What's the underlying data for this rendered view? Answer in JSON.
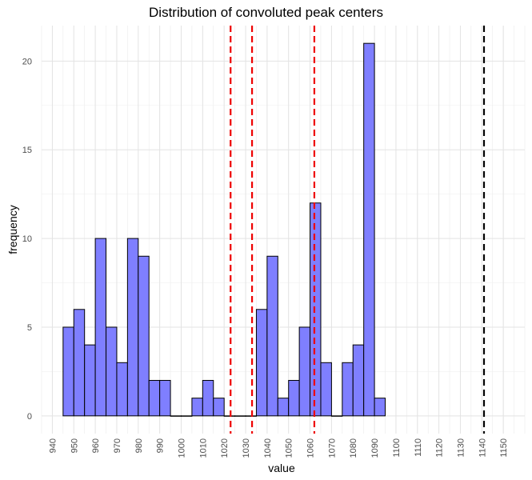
{
  "chart_data": {
    "type": "bar",
    "title": "Distribution of convoluted peak centers",
    "xlabel": "value",
    "ylabel": "frequency",
    "xlim": [
      935,
      1160
    ],
    "ylim": [
      -1,
      22
    ],
    "x_ticks": [
      940,
      950,
      960,
      970,
      980,
      990,
      1000,
      1010,
      1020,
      1030,
      1040,
      1050,
      1060,
      1070,
      1080,
      1090,
      1100,
      1110,
      1120,
      1130,
      1140,
      1150
    ],
    "y_ticks": [
      0,
      5,
      10,
      15,
      20
    ],
    "bin_width": 5,
    "bins": [
      {
        "x0": 945,
        "x1": 950,
        "count": 5
      },
      {
        "x0": 950,
        "x1": 955,
        "count": 6
      },
      {
        "x0": 955,
        "x1": 960,
        "count": 4
      },
      {
        "x0": 960,
        "x1": 965,
        "count": 10
      },
      {
        "x0": 965,
        "x1": 970,
        "count": 5
      },
      {
        "x0": 970,
        "x1": 975,
        "count": 3
      },
      {
        "x0": 975,
        "x1": 980,
        "count": 10
      },
      {
        "x0": 980,
        "x1": 985,
        "count": 9
      },
      {
        "x0": 985,
        "x1": 990,
        "count": 2
      },
      {
        "x0": 990,
        "x1": 995,
        "count": 2
      },
      {
        "x0": 995,
        "x1": 1000,
        "count": 0
      },
      {
        "x0": 1000,
        "x1": 1005,
        "count": 0
      },
      {
        "x0": 1005,
        "x1": 1010,
        "count": 1
      },
      {
        "x0": 1010,
        "x1": 1015,
        "count": 2
      },
      {
        "x0": 1015,
        "x1": 1020,
        "count": 1
      },
      {
        "x0": 1020,
        "x1": 1025,
        "count": 0
      },
      {
        "x0": 1025,
        "x1": 1030,
        "count": 0
      },
      {
        "x0": 1030,
        "x1": 1035,
        "count": 0
      },
      {
        "x0": 1035,
        "x1": 1040,
        "count": 6
      },
      {
        "x0": 1040,
        "x1": 1045,
        "count": 9
      },
      {
        "x0": 1045,
        "x1": 1050,
        "count": 1
      },
      {
        "x0": 1050,
        "x1": 1055,
        "count": 2
      },
      {
        "x0": 1055,
        "x1": 1060,
        "count": 5
      },
      {
        "x0": 1060,
        "x1": 1065,
        "count": 12
      },
      {
        "x0": 1065,
        "x1": 1070,
        "count": 3
      },
      {
        "x0": 1070,
        "x1": 1075,
        "count": 0
      },
      {
        "x0": 1075,
        "x1": 1080,
        "count": 3
      },
      {
        "x0": 1080,
        "x1": 1085,
        "count": 4
      },
      {
        "x0": 1085,
        "x1": 1090,
        "count": 21
      },
      {
        "x0": 1090,
        "x1": 1095,
        "count": 1
      }
    ],
    "reference_lines": [
      {
        "x": 1023,
        "color": "#ee0000",
        "style": "dashed"
      },
      {
        "x": 1033,
        "color": "#ee0000",
        "style": "dashed"
      },
      {
        "x": 1062,
        "color": "#ee0000",
        "style": "dashed"
      },
      {
        "x": 1141,
        "color": "#000000",
        "style": "dashed"
      }
    ],
    "bar_fill": "#7f7fff",
    "bar_stroke": "#000000",
    "grid": true,
    "legend": "none"
  }
}
